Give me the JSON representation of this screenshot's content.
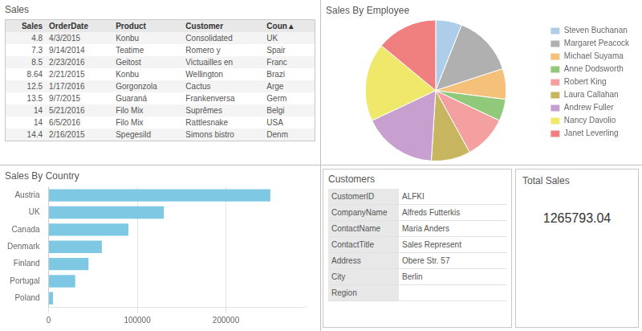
{
  "chart_data": [
    {
      "type": "table",
      "title": "Sales",
      "columns": [
        "Sales",
        "OrderDate",
        "Product",
        "Customer",
        "Coun▲"
      ],
      "rows": [
        [
          "4.8",
          "4/3/2015",
          "Konbu",
          "Consolidated",
          "UK"
        ],
        [
          "7.3",
          "9/14/2014",
          "Teatime",
          "Romero y",
          "Spair"
        ],
        [
          "8.5",
          "2/23/2016",
          "Geitost",
          "Victuailles en",
          "Franc"
        ],
        [
          "8.64",
          "2/21/2015",
          "Konbu",
          "Wellington",
          "Brazi"
        ],
        [
          "12.5",
          "1/17/2016",
          "Gorgonzola",
          "Cactus",
          "Arge"
        ],
        [
          "13.5",
          "9/7/2015",
          "Guaraná",
          "Frankenversa",
          "Germ"
        ],
        [
          "14",
          "5/21/2016",
          "Filo Mix",
          "Suprêmes",
          "Belgi"
        ],
        [
          "14",
          "6/5/2016",
          "Filo Mix",
          "Rattlesnake",
          "USA"
        ],
        [
          "14.4",
          "2/16/2015",
          "Spegesild",
          "Simons bistro",
          "Denm"
        ]
      ]
    },
    {
      "type": "pie",
      "title": "Sales By Employee",
      "categories": [
        "Steven Buchanan",
        "Margaret Peacock",
        "Michael Suyama",
        "Anne Dodsworth",
        "Robert King",
        "Laura Callahan",
        "Andrew Fuller",
        "Nancy Davolio",
        "Janet Leverling"
      ],
      "values": [
        6,
        14,
        7,
        5,
        10,
        9,
        17,
        18,
        14
      ],
      "colors": [
        "#aecde8",
        "#b0b0b0",
        "#f5c07a",
        "#90c97a",
        "#f4a0a0",
        "#c8b560",
        "#c8a0d0",
        "#f0e86a",
        "#f08080"
      ],
      "legend": "right"
    },
    {
      "type": "bar",
      "title": "Sales By Country",
      "orientation": "horizontal",
      "categories": [
        "Austria",
        "UK",
        "Canada",
        "Denmark",
        "Finland",
        "Portugal",
        "Poland"
      ],
      "values": [
        250000,
        130000,
        90000,
        60000,
        45000,
        30000,
        5000
      ],
      "color": "#7ec8e3",
      "xlim": [
        0,
        290000
      ],
      "xticks": [
        0,
        100000,
        200000
      ],
      "grid": true
    },
    {
      "type": "record",
      "title": "Customers",
      "categories": [
        "CustomerID",
        "CompanyName",
        "ContactName",
        "ContactTitle",
        "Address",
        "City",
        "Region"
      ],
      "values": [
        "ALFKI",
        "Alfreds Futterkis",
        "Maria Anders",
        "Sales Represent",
        "Obere Str. 57",
        "Berlin",
        null
      ]
    },
    {
      "type": "kpi",
      "title": "Total Sales",
      "values": [
        1265793.04
      ]
    }
  ]
}
